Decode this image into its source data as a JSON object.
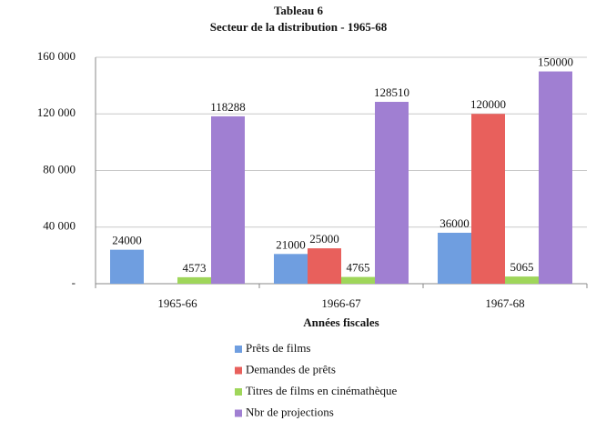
{
  "chart_data": {
    "type": "bar",
    "title": "Tableau 6",
    "subtitle": "Secteur de la distribution  - 1965-68",
    "x_label": "Années fiscales",
    "categories": [
      "1965-66",
      "1966-67",
      "1967-68"
    ],
    "series": [
      {
        "name": "Prêts de films",
        "color": "#6f9ee0",
        "values": [
          24000,
          21000,
          36000
        ]
      },
      {
        "name": "Demandes de prêts",
        "color": "#e8605c",
        "values": [
          null,
          25000,
          120000
        ]
      },
      {
        "name": "Titres de films en cinémathèque",
        "color": "#9fd65a",
        "values": [
          4573,
          4765,
          5065
        ]
      },
      {
        "name": "Nbr de projections",
        "color": "#a07fd2",
        "values": [
          118288,
          128510,
          150000
        ]
      }
    ],
    "ylim": [
      0,
      160000
    ],
    "yticks": [
      {
        "value": 0,
        "label": "-"
      },
      {
        "value": 40000,
        "label": "40 000"
      },
      {
        "value": 80000,
        "label": "80 000"
      },
      {
        "value": 120000,
        "label": "120 000"
      },
      {
        "value": 160000,
        "label": "160 000"
      }
    ],
    "grid": true,
    "legend": "bottom"
  }
}
